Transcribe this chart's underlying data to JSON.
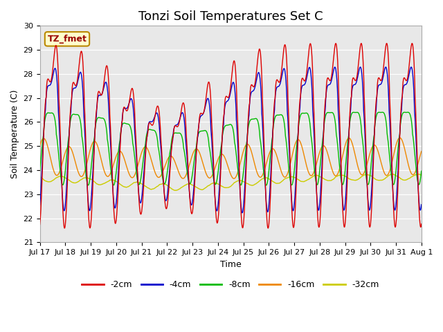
{
  "title": "Tonzi Soil Temperatures Set C",
  "xlabel": "Time",
  "ylabel": "Soil Temperature (C)",
  "ylim": [
    21.0,
    30.0
  ],
  "yticks": [
    21.0,
    22.0,
    23.0,
    24.0,
    25.0,
    26.0,
    27.0,
    28.0,
    29.0,
    30.0
  ],
  "xtick_labels": [
    "Jul 17",
    "Jul 18",
    "Jul 19",
    "Jul 20",
    "Jul 21",
    "Jul 22",
    "Jul 23",
    "Jul 24",
    "Jul 25",
    "Jul 26",
    "Jul 27",
    "Jul 28",
    "Jul 29",
    "Jul 30",
    "Jul 31",
    "Aug 1"
  ],
  "series": [
    {
      "label": "-2cm",
      "color": "#dd0000",
      "lw": 1.0
    },
    {
      "label": "-4cm",
      "color": "#0000cc",
      "lw": 1.0
    },
    {
      "label": "-8cm",
      "color": "#00bb00",
      "lw": 1.0
    },
    {
      "label": "-16cm",
      "color": "#ee8800",
      "lw": 1.0
    },
    {
      "label": "-32cm",
      "color": "#cccc00",
      "lw": 1.0
    }
  ],
  "annotation_text": "TZ_fmet",
  "annotation_bg": "#ffffcc",
  "annotation_border": "#bb8800",
  "bg_color": "#e8e8e8",
  "fig_bg": "#ffffff",
  "title_fontsize": 13,
  "label_fontsize": 9,
  "tick_fontsize": 8
}
